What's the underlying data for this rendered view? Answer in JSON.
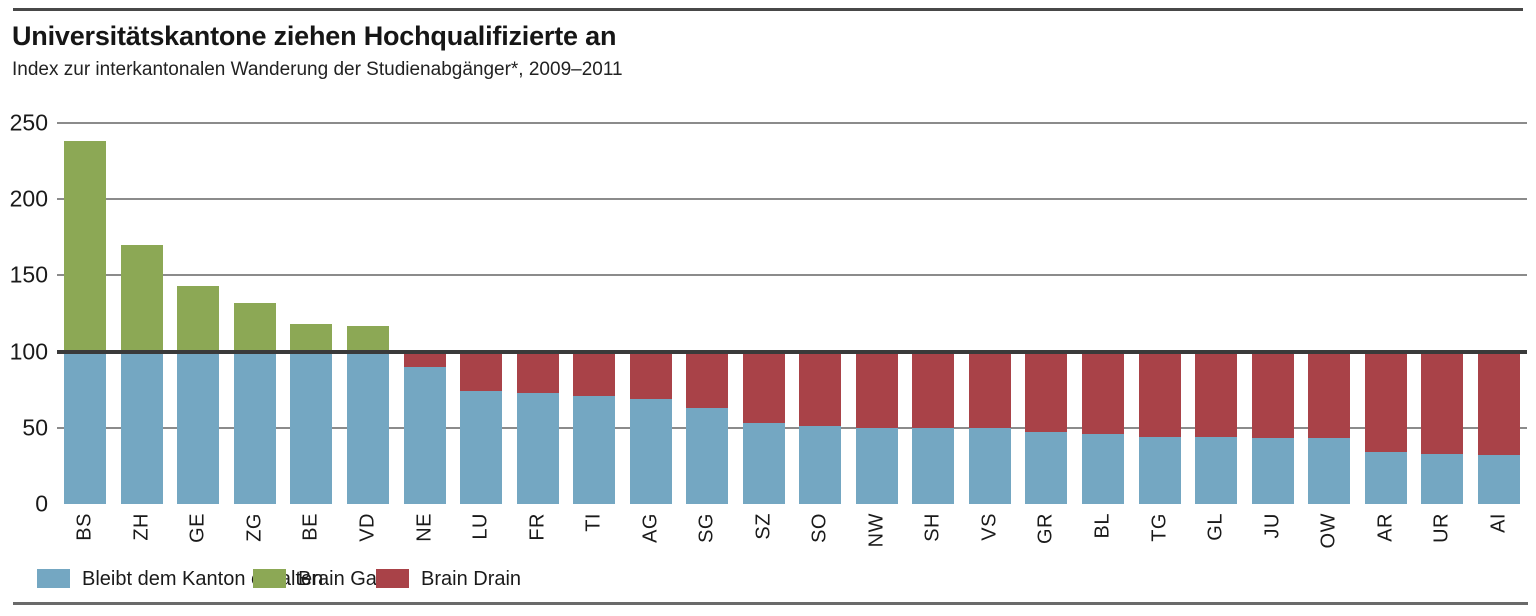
{
  "header": {
    "title": "Universitätskantone ziehen Hochqualifizierte an",
    "subtitle": "Index zur interkantonalen Wanderung der Studienabgänger*, 2009–2011"
  },
  "colors": {
    "retained_blue": "#74a7c2",
    "gain_green": "#8ca855",
    "drain_red": "#a94248",
    "gridline": "#8b8b8b",
    "baseline": "#3a3a3a",
    "text": "#1a1a1a"
  },
  "chart_data": {
    "type": "bar",
    "stacked": true,
    "title": "Universitätskantone ziehen Hochqualifizierte an",
    "subtitle": "Index zur interkantonalen Wanderung der Studienabgänger*, 2009–2011",
    "xlabel": "",
    "ylabel": "",
    "ylim": [
      0,
      250
    ],
    "yticks": [
      0,
      50,
      100,
      150,
      200,
      250
    ],
    "baseline": 100,
    "grid": "horizontal",
    "legend_position": "bottom",
    "categories": [
      "BS",
      "ZH",
      "GE",
      "ZG",
      "BE",
      "VD",
      "NE",
      "LU",
      "FR",
      "TI",
      "AG",
      "SG",
      "SZ",
      "SO",
      "NW",
      "SH",
      "VS",
      "GR",
      "BL",
      "TG",
      "GL",
      "JU",
      "OW",
      "AR",
      "UR",
      "AI"
    ],
    "index_values": [
      238,
      170,
      143,
      132,
      118,
      117,
      90,
      74,
      73,
      71,
      69,
      63,
      53,
      51,
      50,
      50,
      50,
      47,
      46,
      44,
      44,
      43,
      43,
      34,
      33,
      32
    ],
    "series": [
      {
        "name": "Bleibt dem Kanton erhalten",
        "color": "#74a7c2",
        "values": [
          100,
          100,
          100,
          100,
          100,
          100,
          90,
          74,
          73,
          71,
          69,
          63,
          53,
          51,
          50,
          50,
          50,
          47,
          46,
          44,
          44,
          43,
          43,
          34,
          33,
          32
        ]
      },
      {
        "name": "Brain Gain",
        "color": "#8ca855",
        "values": [
          138,
          70,
          43,
          32,
          18,
          17,
          0,
          0,
          0,
          0,
          0,
          0,
          0,
          0,
          0,
          0,
          0,
          0,
          0,
          0,
          0,
          0,
          0,
          0,
          0,
          0
        ]
      },
      {
        "name": "Brain Drain",
        "color": "#a94248",
        "values": [
          0,
          0,
          0,
          0,
          0,
          0,
          10,
          26,
          27,
          29,
          31,
          37,
          47,
          49,
          50,
          50,
          50,
          53,
          54,
          56,
          56,
          57,
          57,
          66,
          67,
          68
        ]
      }
    ]
  },
  "legend": {
    "items": [
      {
        "label": "Bleibt dem Kanton erhalten",
        "color": "#74a7c2"
      },
      {
        "label": "Brain Gain",
        "color": "#8ca855"
      },
      {
        "label": "Brain Drain",
        "color": "#a94248"
      }
    ]
  }
}
